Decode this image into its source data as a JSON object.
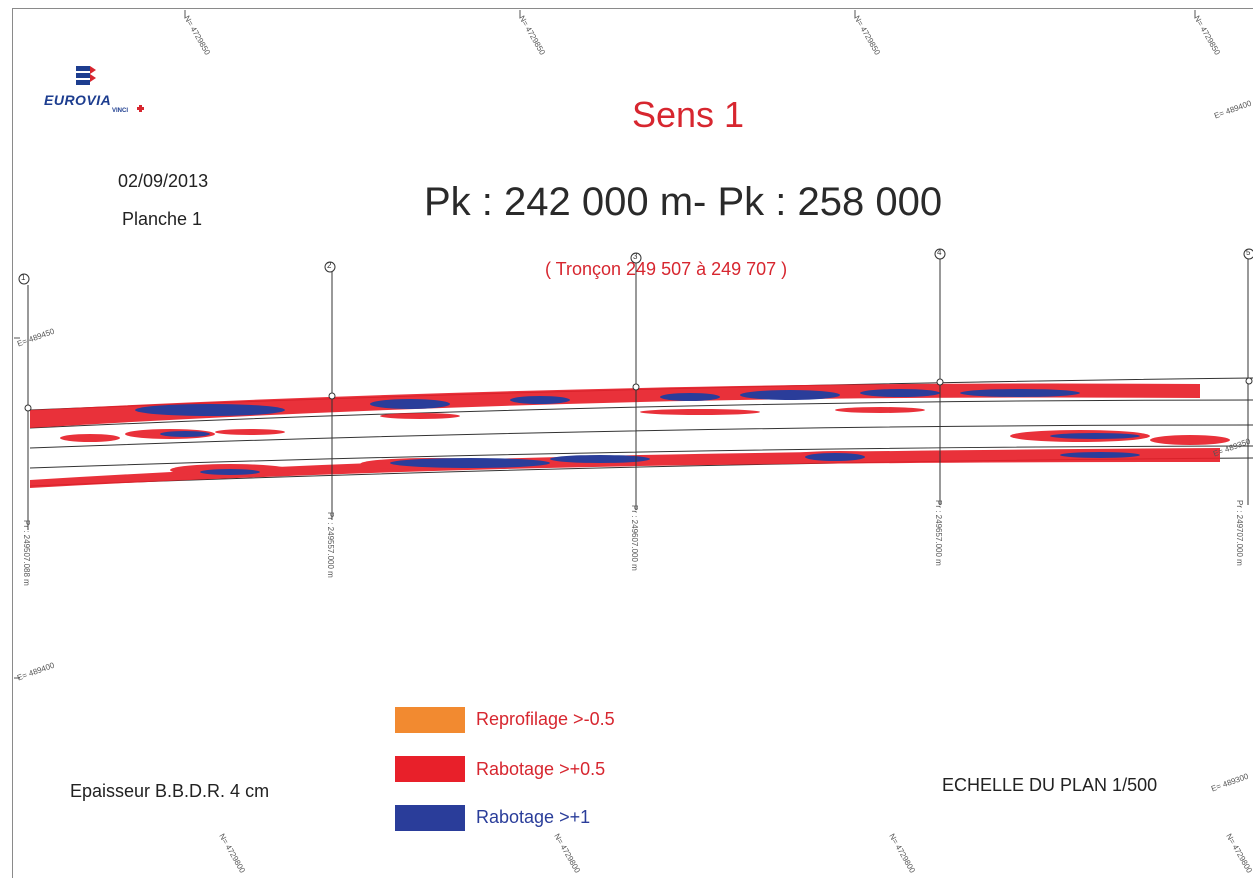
{
  "header": {
    "title": "Sens 1",
    "subtitle": "Pk : 242 000 m- Pk : 258 000",
    "section": "( Tronçon 249 507 à 249 707 )",
    "date": "02/09/2013",
    "sheet": "Planche 1"
  },
  "logo": {
    "brand": "EUROVIA",
    "sub": "VINCI",
    "icon": "eurovia-logo-icon"
  },
  "footer": {
    "thickness": "Epaisseur B.B.D.R. 4 cm",
    "scale": "ECHELLE DU PLAN 1/500"
  },
  "legend": [
    {
      "label": "Reprofilage >-0.5",
      "color": "#f28a30",
      "text_color": "#d7262f"
    },
    {
      "label": "Rabotage >+0.5",
      "color": "#e8202a",
      "text_color": "#d7262f"
    },
    {
      "label": "Rabotage >+1",
      "color": "#2a3d9a",
      "text_color": "#2a3d9a"
    }
  ],
  "profiles": [
    {
      "id": "1",
      "label": "Pr : 249507.088 m"
    },
    {
      "id": "2",
      "label": "Pr : 249557.000 m"
    },
    {
      "id": "3",
      "label": "Pr : 249607.000 m"
    },
    {
      "id": "4",
      "label": "Pr : 249657.000 m"
    },
    {
      "id": "5",
      "label": "Pr : 249707.000 m"
    }
  ],
  "grid_labels": {
    "north_top": [
      "N= 4729850",
      "N= 4729850",
      "N= 4729850",
      "N= 4729850"
    ],
    "north_bottom": [
      "N= 4729800",
      "N= 4729800",
      "N= 4729800",
      "N= 4729800"
    ],
    "east": [
      "E= 489450",
      "E= 489400",
      "E= 489400",
      "E= 489300",
      "E= 489350"
    ]
  },
  "colors": {
    "accent_red": "#d7262f",
    "blue": "#2a3d9a",
    "line": "#333333"
  }
}
